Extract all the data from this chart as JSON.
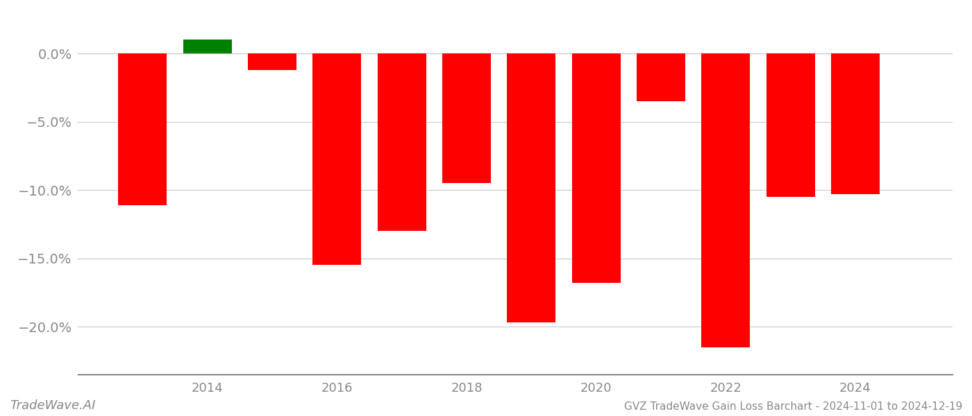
{
  "years": [
    2013,
    2014,
    2015,
    2016,
    2017,
    2018,
    2019,
    2020,
    2021,
    2022,
    2023,
    2024
  ],
  "values": [
    -0.111,
    0.01,
    -0.012,
    -0.155,
    -0.13,
    -0.095,
    -0.197,
    -0.168,
    -0.035,
    -0.215,
    -0.105,
    -0.103
  ],
  "colors": [
    "#ff0000",
    "#008000",
    "#ff0000",
    "#ff0000",
    "#ff0000",
    "#ff0000",
    "#ff0000",
    "#ff0000",
    "#ff0000",
    "#ff0000",
    "#ff0000",
    "#ff0000"
  ],
  "title": "GVZ TradeWave Gain Loss Barchart - 2024-11-01 to 2024-12-19",
  "watermark": "TradeWave.AI",
  "ylim_min": -0.235,
  "ylim_max": 0.03,
  "yticks": [
    0.0,
    -0.05,
    -0.1,
    -0.15,
    -0.2
  ],
  "bar_width": 0.75,
  "bg_color": "#ffffff",
  "grid_color": "#c8c8c8",
  "axis_color": "#555555",
  "tick_color": "#888888",
  "title_fontsize": 11,
  "watermark_fontsize": 13
}
